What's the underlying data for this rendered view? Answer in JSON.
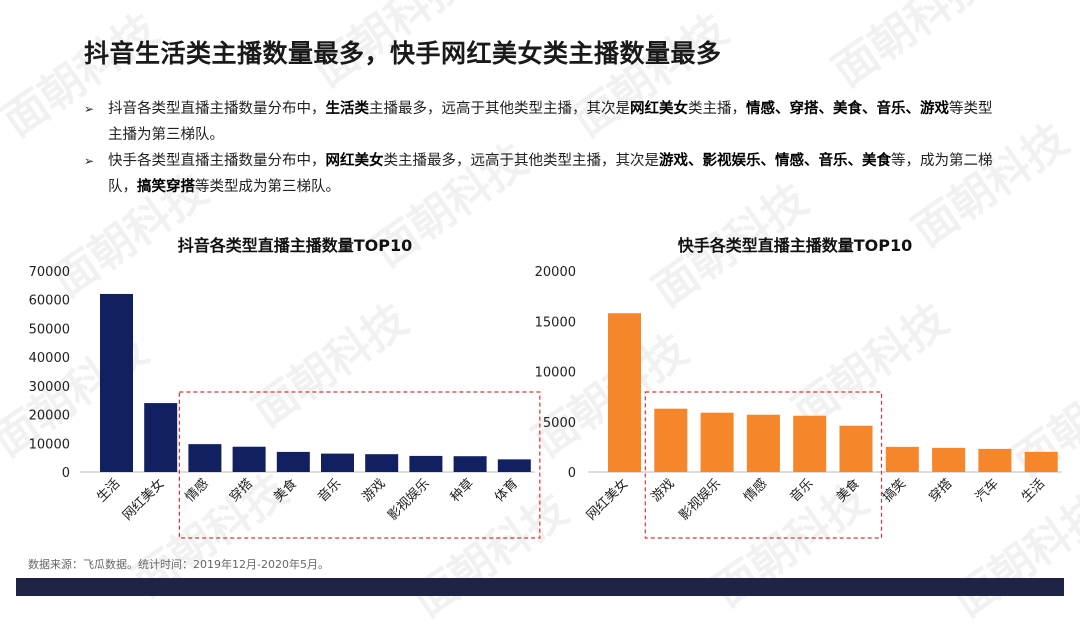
{
  "title": "抖音生活类主播数量最多，快手网红美女类主播数量最多",
  "bullets": [
    {
      "marker": "➢",
      "parts": [
        {
          "t": "抖音各类型直播主播数量分布中，",
          "b": false
        },
        {
          "t": "生活类",
          "b": true
        },
        {
          "t": "主播最多，远高于其他类型主播，其次是",
          "b": false
        },
        {
          "t": "网红美女",
          "b": true
        },
        {
          "t": "类主播，",
          "b": false
        },
        {
          "t": "情感、穿搭、美食、音乐、游戏",
          "b": true
        },
        {
          "t": "等类型主播为第三梯队。",
          "b": false
        }
      ]
    },
    {
      "marker": "➢",
      "parts": [
        {
          "t": "快手各类型直播主播数量分布中，",
          "b": false
        },
        {
          "t": "网红美女",
          "b": true
        },
        {
          "t": "类主播最多，远高于其他类型主播，其次是",
          "b": false
        },
        {
          "t": "游戏、影视娱乐、情感、音乐、美食",
          "b": true
        },
        {
          "t": "等，成为第二梯队，",
          "b": false
        },
        {
          "t": "搞笑穿搭",
          "b": true
        },
        {
          "t": "等类型成为第三梯队。",
          "b": false
        }
      ]
    }
  ],
  "source_note": "数据来源：飞瓜数据。统计时间：2019年12月-2020年5月。",
  "watermark": "面朝科技",
  "chart_data": [
    {
      "type": "bar",
      "title": "抖音各类型直播主播数量TOP10",
      "categories": [
        "生活",
        "网红美女",
        "情感",
        "穿搭",
        "美食",
        "音乐",
        "游戏",
        "影视娱乐",
        "种草",
        "体育"
      ],
      "values": [
        62000,
        24000,
        9700,
        8800,
        7000,
        6400,
        6200,
        5600,
        5500,
        4400
      ],
      "ylim": [
        0,
        70000
      ],
      "yticks": [
        0,
        10000,
        20000,
        30000,
        40000,
        50000,
        60000,
        70000
      ],
      "color": "#102060",
      "highlight_range": [
        2,
        9
      ],
      "highlight_color": "#e03030"
    },
    {
      "type": "bar",
      "title": "快手各类型直播主播数量TOP10",
      "categories": [
        "网红美女",
        "游戏",
        "影视娱乐",
        "情感",
        "音乐",
        "美食",
        "搞笑",
        "穿搭",
        "汽车",
        "生活"
      ],
      "values": [
        15800,
        6300,
        5900,
        5700,
        5600,
        4600,
        2500,
        2400,
        2300,
        2000
      ],
      "ylim": [
        0,
        20000
      ],
      "yticks": [
        0,
        5000,
        10000,
        15000,
        20000
      ],
      "color": "#f5862a",
      "highlight_range": [
        1,
        5
      ],
      "highlight_color": "#e03030"
    }
  ]
}
